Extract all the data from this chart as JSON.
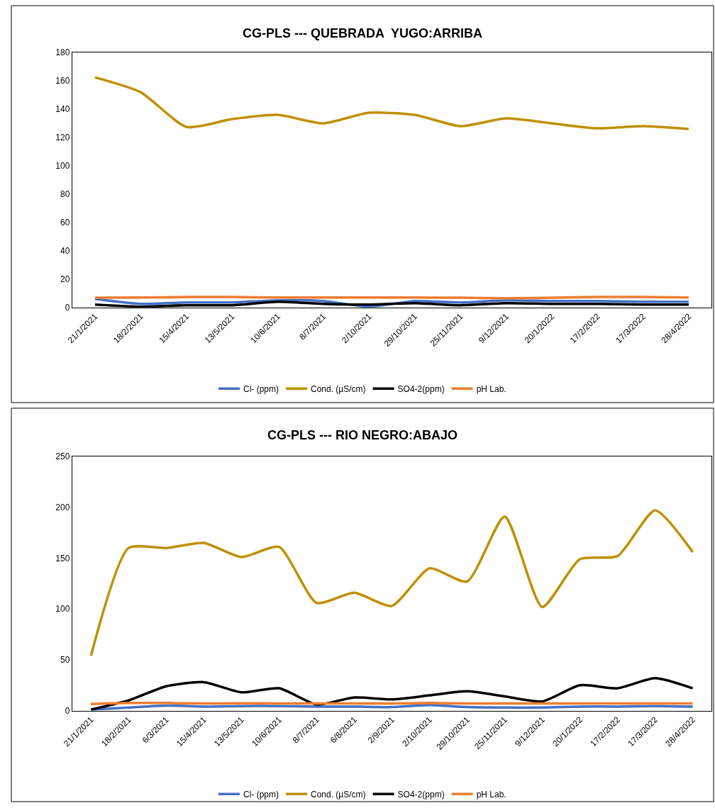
{
  "chart_data": [
    {
      "type": "line",
      "title": "CG-PLS --- QUEBRADA  YUGO:ARRIBA",
      "categories": [
        "21/1/2021",
        "18/2/2021",
        "15/4/2021",
        "13/5/2021",
        "10/6/2021",
        "8/7/2021",
        "2/10/2021",
        "29/10/2021",
        "25/11/2021",
        "9/12/2021",
        "20/1/2022",
        "17/2/2022",
        "17/3/2022",
        "28/4/2022"
      ],
      "series": [
        {
          "name": "Cl- (ppm)",
          "color": "#4472c4",
          "values": [
            6,
            2.5,
            3.5,
            3.5,
            5,
            4.5,
            0.5,
            4.5,
            3.5,
            5,
            4.5,
            4.5,
            4,
            4
          ]
        },
        {
          "name": "Cond. (µS/cm)",
          "color": "#bf9000",
          "values": [
            162.5,
            152,
            127.5,
            133,
            136,
            130,
            137.5,
            136,
            128,
            133.5,
            130,
            126.5,
            128,
            126
          ]
        },
        {
          "name": "SO4-2(ppm)",
          "color": "#000000",
          "values": [
            2,
            0.5,
            1.5,
            1.5,
            4,
            2.5,
            2,
            3,
            1.5,
            3,
            2.5,
            2.5,
            2,
            2
          ]
        },
        {
          "name": "pH Lab.",
          "color": "#ed7d31",
          "values": [
            6.8,
            7,
            7.3,
            7.3,
            7,
            7,
            7,
            7,
            6.8,
            6.5,
            6.8,
            7.3,
            7.3,
            7
          ]
        }
      ],
      "ylim": [
        0,
        180
      ],
      "yticks": [
        0,
        20,
        40,
        60,
        80,
        100,
        120,
        140,
        160,
        180
      ],
      "grid": false,
      "legend": "bottom",
      "marker": "none",
      "line_style": "solid"
    },
    {
      "type": "line",
      "title": "CG-PLS --- RIO NEGRO:ABAJO",
      "categories": [
        "21/1/2021",
        "18/2/2021",
        "6/3/2021",
        "15/4/2021",
        "13/5/2021",
        "10/6/2021",
        "8/7/2021",
        "6/8/2021",
        "2/9/2021",
        "2/10/2021",
        "29/10/2021",
        "25/11/2021",
        "9/12/2021",
        "20/1/2022",
        "17/2/2022",
        "17/3/2022",
        "28/4/2022"
      ],
      "series": [
        {
          "name": "Cl- (ppm)",
          "color": "#4472c4",
          "values": [
            1,
            3,
            5,
            4,
            4.5,
            4.5,
            4,
            4,
            3.5,
            5.5,
            3.5,
            3,
            3,
            4,
            4,
            4.5,
            4
          ]
        },
        {
          "name": "Cond. (µS/cm)",
          "color": "#bf9000",
          "values": [
            54,
            160,
            160,
            165,
            151,
            161,
            106,
            116,
            103,
            140,
            127,
            191,
            102,
            149,
            152,
            197,
            156
          ]
        },
        {
          "name": "SO4-2(ppm)",
          "color": "#000000",
          "values": [
            1,
            10,
            24,
            28,
            18,
            22,
            6,
            13,
            11,
            15,
            19,
            14,
            9,
            25,
            22,
            32,
            22
          ]
        },
        {
          "name": "pH Lab.",
          "color": "#ed7d31",
          "values": [
            6.5,
            7.5,
            7.5,
            7,
            7.3,
            7,
            7,
            7,
            7,
            7.5,
            7,
            7,
            7,
            7,
            7,
            7,
            7
          ]
        }
      ],
      "ylim": [
        0,
        250
      ],
      "yticks": [
        0,
        50,
        100,
        150,
        200,
        250
      ],
      "grid": false,
      "legend": "bottom",
      "marker": "none",
      "line_style": "solid"
    }
  ]
}
